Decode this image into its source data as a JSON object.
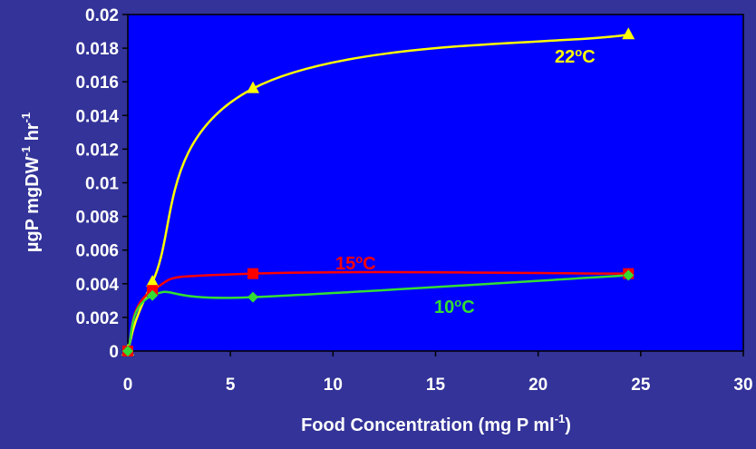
{
  "chart_data": {
    "type": "line",
    "xlabel": {
      "main": "Food Concentration (mg P ml",
      "sup": "-1",
      "tail": ")"
    },
    "ylabel": {
      "p1": "µgP mgDW",
      "s1": "-1",
      "p2": " hr",
      "s2": "-1"
    },
    "xlim": [
      0,
      30
    ],
    "ylim": [
      0,
      0.02
    ],
    "x_ticks": [
      "0",
      "5",
      "10",
      "15",
      "20",
      "25",
      "30"
    ],
    "y_ticks": [
      "0",
      "0.002",
      "0.004",
      "0.006",
      "0.008",
      "0.01",
      "0.012",
      "0.014",
      "0.016",
      "0.018",
      "0.02"
    ],
    "colors": {
      "background": "#333399",
      "plot_area": "#0000ff"
    },
    "series": [
      {
        "label": {
          "base": "22",
          "sup": "o",
          "unit": "C"
        },
        "color": "#ffff00",
        "marker": "triangle",
        "x": [
          0,
          1.2,
          6.1,
          24.4
        ],
        "y": [
          0,
          0.0041,
          0.0156,
          0.0188
        ]
      },
      {
        "label": {
          "base": "15",
          "sup": "o",
          "unit": "C"
        },
        "color": "#ff0000",
        "marker": "square",
        "x": [
          0,
          1.2,
          6.1,
          24.4
        ],
        "y": [
          0,
          0.0036,
          0.0046,
          0.0046
        ]
      },
      {
        "label": {
          "base": "10",
          "sup": "o",
          "unit": "C"
        },
        "color": "#33dd33",
        "marker": "diamond",
        "x": [
          0,
          1.2,
          6.1,
          24.4
        ],
        "y": [
          0,
          0.0033,
          0.0032,
          0.0045
        ]
      }
    ]
  }
}
